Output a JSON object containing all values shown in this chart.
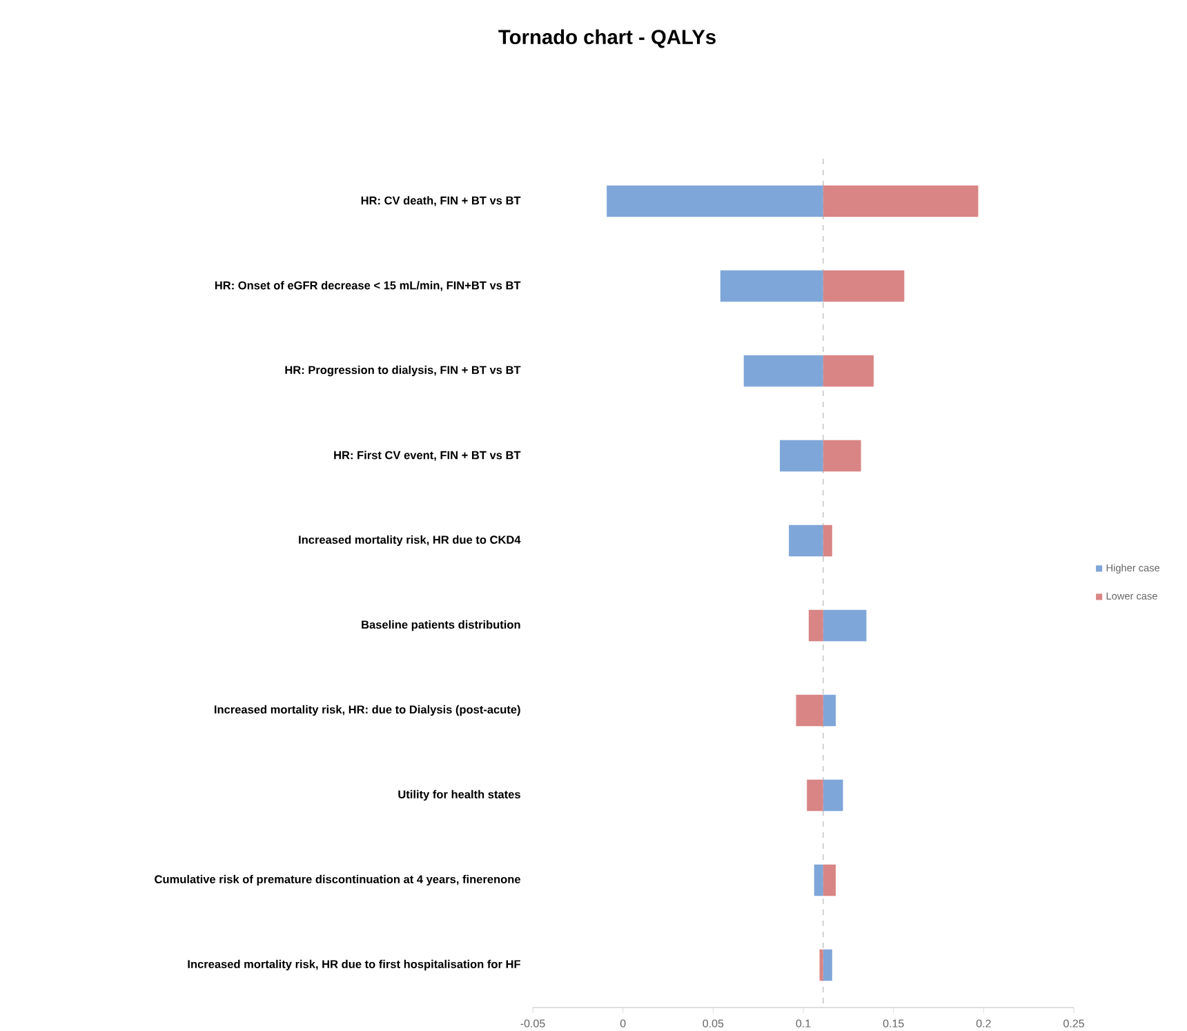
{
  "chart_data": {
    "type": "bar",
    "orientation": "horizontal",
    "title": "Tornado chart - QALYs",
    "categories": [
      "HR: CV death, FIN + BT vs BT",
      "HR: Onset of eGFR decrease < 15 mL/min, FIN+BT vs BT",
      "HR: Progression to dialysis, FIN + BT vs BT",
      "HR: First CV event, FIN + BT vs BT",
      "Increased mortality risk, HR due to CKD4",
      "Baseline patients distribution",
      "Increased mortality risk, HR: due to Dialysis (post-acute)",
      "Utility for health states",
      "Cumulative risk of premature discontinuation at 4 years, finerenone",
      "Increased mortality risk, HR due to first hospitalisation for HF"
    ],
    "series": [
      {
        "name": "Higher case",
        "color": "#7fa6d8",
        "base": [
          0.111,
          0.111,
          0.111,
          0.111,
          0.111,
          0.111,
          0.111,
          0.111,
          0.111,
          0.111
        ],
        "values": [
          -0.12,
          -0.057,
          -0.044,
          -0.024,
          -0.019,
          0.024,
          0.007,
          0.011,
          -0.005,
          0.005
        ]
      },
      {
        "name": "Lower case",
        "color": "#d98585",
        "base": [
          0.111,
          0.111,
          0.111,
          0.111,
          0.111,
          0.111,
          0.111,
          0.111,
          0.111,
          0.111
        ],
        "values": [
          0.086,
          0.045,
          0.028,
          0.021,
          0.005,
          -0.008,
          -0.015,
          -0.009,
          0.007,
          -0.002
        ]
      }
    ],
    "xlim": [
      -0.05,
      0.25
    ],
    "xticks": [
      -0.05,
      0,
      0.05,
      0.1,
      0.15,
      0.2,
      0.25
    ],
    "ref_lines": [
      {
        "axis": "x",
        "value": 0.111,
        "color": "#c8c8c8",
        "line_style": "dashed"
      }
    ],
    "legend": "right"
  }
}
